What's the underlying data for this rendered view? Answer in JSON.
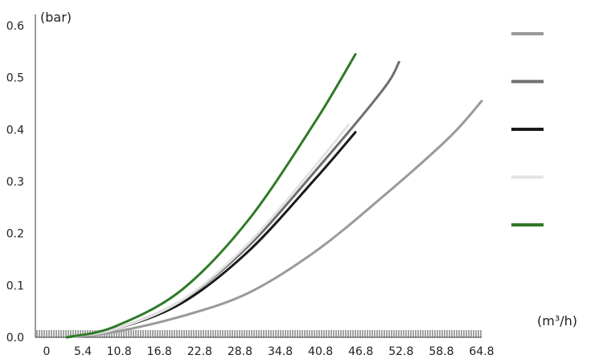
{
  "chart_data": {
    "type": "line",
    "xlabel": "(m³/h)",
    "ylabel": "(bar)",
    "xlim": [
      0,
      64.8
    ],
    "ylim": [
      0,
      0.6
    ],
    "x_ticks": [
      "0",
      "5.4",
      "10.8",
      "16.8",
      "22.8",
      "28.8",
      "34.8",
      "40.8",
      "46.8",
      "52.8",
      "58.8",
      "64.8"
    ],
    "y_ticks": [
      "0.0",
      "0.1",
      "0.2",
      "0.3",
      "0.4",
      "0.5",
      "0.6"
    ],
    "grid": false,
    "legend_position": "right",
    "series": [
      {
        "color": "#9a9a9a",
        "x": [
          3.0,
          10,
          20,
          30,
          40,
          50,
          60,
          64.8
        ],
        "y": [
          0,
          0.01,
          0.04,
          0.085,
          0.165,
          0.27,
          0.385,
          0.455
        ]
      },
      {
        "color": "#6f6f6f",
        "x": [
          3.0,
          10,
          20,
          30,
          40,
          50,
          52.5
        ],
        "y": [
          0,
          0.015,
          0.07,
          0.175,
          0.32,
          0.475,
          0.53
        ]
      },
      {
        "color": "#1a1a1a",
        "x": [
          3.0,
          10,
          20,
          30,
          40,
          46.0
        ],
        "y": [
          0,
          0.015,
          0.065,
          0.165,
          0.305,
          0.395
        ]
      },
      {
        "color": "#e3e3e3",
        "x": [
          3.0,
          10,
          20,
          30,
          40,
          45.0
        ],
        "y": [
          0,
          0.015,
          0.07,
          0.18,
          0.33,
          0.41
        ]
      },
      {
        "color": "#2f7a27",
        "x": [
          3.0,
          10,
          20,
          30,
          40,
          46.0
        ],
        "y": [
          0,
          0.02,
          0.09,
          0.225,
          0.415,
          0.545
        ]
      }
    ]
  }
}
